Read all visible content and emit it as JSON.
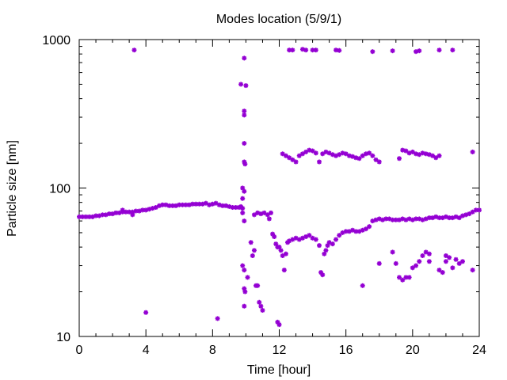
{
  "chart_data": {
    "type": "scatter",
    "title": "Modes location (5/9/1)",
    "xlabel": "Time [hour]",
    "ylabel": "Particle size [nm]",
    "xlim": [
      0,
      24
    ],
    "ylim": [
      10,
      1000
    ],
    "yscale": "log",
    "grid": false,
    "marker_color": "#9400d3",
    "xticks": [
      "0",
      "4",
      "8",
      "12",
      "16",
      "20",
      "24"
    ],
    "yticks": [
      "10",
      "100",
      "1000"
    ],
    "series": [
      {
        "values": [
          [
            0.0,
            64
          ],
          [
            0.2,
            64
          ],
          [
            0.4,
            64
          ],
          [
            0.6,
            64
          ],
          [
            0.8,
            64
          ],
          [
            1.0,
            65
          ],
          [
            1.2,
            65
          ],
          [
            1.4,
            66
          ],
          [
            1.6,
            66
          ],
          [
            1.8,
            67
          ],
          [
            2.0,
            67
          ],
          [
            2.2,
            68
          ],
          [
            2.4,
            68
          ],
          [
            2.6,
            69
          ],
          [
            2.8,
            69
          ],
          [
            3.0,
            69
          ],
          [
            3.2,
            69
          ],
          [
            3.4,
            70
          ],
          [
            3.6,
            70
          ],
          [
            3.8,
            71
          ],
          [
            4.0,
            71
          ],
          [
            4.2,
            72
          ],
          [
            4.4,
            73
          ],
          [
            4.6,
            74
          ],
          [
            4.8,
            76
          ],
          [
            5.0,
            77
          ],
          [
            5.2,
            77
          ],
          [
            5.4,
            76
          ],
          [
            5.6,
            76
          ],
          [
            5.8,
            76
          ],
          [
            6.0,
            77
          ],
          [
            6.2,
            77
          ],
          [
            6.4,
            77
          ],
          [
            6.6,
            77
          ],
          [
            6.8,
            78
          ],
          [
            7.0,
            78
          ],
          [
            7.2,
            78
          ],
          [
            7.4,
            78
          ],
          [
            7.6,
            79
          ],
          [
            7.8,
            77
          ],
          [
            8.0,
            78
          ],
          [
            8.2,
            79
          ],
          [
            8.4,
            77
          ],
          [
            8.6,
            76
          ],
          [
            8.8,
            76
          ],
          [
            9.0,
            75
          ],
          [
            9.2,
            74
          ],
          [
            9.4,
            74
          ],
          [
            9.6,
            74
          ],
          [
            9.8,
            73
          ],
          [
            2.6,
            71
          ],
          [
            3.2,
            66
          ],
          [
            9.7,
            500
          ],
          [
            9.9,
            750
          ],
          [
            10.0,
            490
          ],
          [
            9.9,
            330
          ],
          [
            9.9,
            310
          ],
          [
            9.9,
            200
          ],
          [
            9.9,
            150
          ],
          [
            9.95,
            145
          ],
          [
            9.8,
            100
          ],
          [
            9.9,
            95
          ],
          [
            9.8,
            85
          ],
          [
            9.7,
            75
          ],
          [
            9.8,
            68
          ],
          [
            9.9,
            60
          ],
          [
            9.8,
            30
          ],
          [
            9.9,
            28
          ],
          [
            9.9,
            21
          ],
          [
            9.95,
            20
          ],
          [
            9.9,
            16
          ],
          [
            10.1,
            25
          ],
          [
            10.3,
            43
          ],
          [
            10.4,
            35
          ],
          [
            10.5,
            38
          ],
          [
            10.6,
            22
          ],
          [
            10.7,
            22
          ],
          [
            10.8,
            17
          ],
          [
            10.9,
            16
          ],
          [
            11.0,
            15
          ],
          [
            10.5,
            66
          ],
          [
            10.7,
            68
          ],
          [
            10.9,
            67
          ],
          [
            11.1,
            68
          ],
          [
            11.3,
            66
          ],
          [
            11.4,
            62
          ],
          [
            11.5,
            68
          ],
          [
            11.6,
            49
          ],
          [
            11.7,
            47
          ],
          [
            11.8,
            42
          ],
          [
            11.9,
            40
          ],
          [
            12.0,
            40
          ],
          [
            12.1,
            38
          ],
          [
            12.2,
            35
          ],
          [
            12.3,
            28
          ],
          [
            12.5,
            43
          ],
          [
            12.4,
            36
          ],
          [
            11.9,
            12.5
          ],
          [
            12.0,
            12
          ],
          [
            12.6,
            44
          ],
          [
            12.8,
            45
          ],
          [
            13.0,
            46
          ],
          [
            13.2,
            45
          ],
          [
            13.4,
            46
          ],
          [
            13.6,
            47
          ],
          [
            13.8,
            48
          ],
          [
            14.0,
            46
          ],
          [
            14.2,
            45
          ],
          [
            14.4,
            41
          ],
          [
            14.5,
            27
          ],
          [
            14.6,
            26
          ],
          [
            14.7,
            36
          ],
          [
            14.8,
            38
          ],
          [
            14.9,
            41
          ],
          [
            15.0,
            43
          ],
          [
            15.2,
            42
          ],
          [
            15.4,
            45
          ],
          [
            15.6,
            48
          ],
          [
            15.8,
            50
          ],
          [
            16.0,
            51
          ],
          [
            16.2,
            51
          ],
          [
            16.4,
            52
          ],
          [
            16.6,
            51
          ],
          [
            16.8,
            51
          ],
          [
            17.0,
            52
          ],
          [
            17.2,
            53
          ],
          [
            17.4,
            55
          ],
          [
            17.6,
            60
          ],
          [
            17.8,
            61
          ],
          [
            18.0,
            62
          ],
          [
            18.2,
            61
          ],
          [
            18.4,
            62
          ],
          [
            18.6,
            62
          ],
          [
            18.8,
            61
          ],
          [
            19.0,
            61
          ],
          [
            19.2,
            61
          ],
          [
            19.4,
            62
          ],
          [
            19.6,
            61
          ],
          [
            19.8,
            62
          ],
          [
            20.0,
            61
          ],
          [
            20.2,
            62
          ],
          [
            20.4,
            62
          ],
          [
            20.6,
            61
          ],
          [
            20.8,
            62
          ],
          [
            21.0,
            63
          ],
          [
            21.2,
            63
          ],
          [
            21.4,
            64
          ],
          [
            21.6,
            63
          ],
          [
            21.8,
            63
          ],
          [
            22.0,
            64
          ],
          [
            22.2,
            63
          ],
          [
            22.4,
            63
          ],
          [
            22.6,
            64
          ],
          [
            22.8,
            63
          ],
          [
            23.0,
            65
          ],
          [
            23.2,
            66
          ],
          [
            23.4,
            67
          ],
          [
            23.6,
            69
          ],
          [
            23.8,
            71
          ],
          [
            24.0,
            71
          ],
          [
            12.2,
            170
          ],
          [
            12.4,
            165
          ],
          [
            12.6,
            160
          ],
          [
            12.8,
            155
          ],
          [
            13.0,
            150
          ],
          [
            13.2,
            165
          ],
          [
            13.4,
            170
          ],
          [
            13.6,
            175
          ],
          [
            13.8,
            180
          ],
          [
            14.0,
            178
          ],
          [
            14.2,
            172
          ],
          [
            14.4,
            150
          ],
          [
            14.6,
            170
          ],
          [
            14.8,
            175
          ],
          [
            15.0,
            172
          ],
          [
            15.2,
            168
          ],
          [
            15.4,
            165
          ],
          [
            15.6,
            168
          ],
          [
            15.8,
            172
          ],
          [
            16.0,
            170
          ],
          [
            16.2,
            165
          ],
          [
            16.4,
            163
          ],
          [
            16.6,
            160
          ],
          [
            16.8,
            158
          ],
          [
            17.0,
            165
          ],
          [
            17.2,
            170
          ],
          [
            17.4,
            172
          ],
          [
            17.6,
            165
          ],
          [
            17.8,
            155
          ],
          [
            18.0,
            150
          ],
          [
            19.2,
            158
          ],
          [
            19.4,
            180
          ],
          [
            19.6,
            178
          ],
          [
            19.8,
            172
          ],
          [
            20.0,
            175
          ],
          [
            20.2,
            170
          ],
          [
            20.4,
            168
          ],
          [
            20.6,
            172
          ],
          [
            20.8,
            170
          ],
          [
            21.0,
            168
          ],
          [
            21.2,
            165
          ],
          [
            21.4,
            160
          ],
          [
            21.6,
            165
          ],
          [
            23.6,
            175
          ],
          [
            3.3,
            850
          ],
          [
            12.6,
            850
          ],
          [
            12.8,
            850
          ],
          [
            13.4,
            860
          ],
          [
            13.6,
            850
          ],
          [
            14.0,
            850
          ],
          [
            14.2,
            850
          ],
          [
            15.4,
            850
          ],
          [
            15.6,
            845
          ],
          [
            17.6,
            830
          ],
          [
            18.8,
            840
          ],
          [
            20.2,
            830
          ],
          [
            20.4,
            840
          ],
          [
            21.6,
            850
          ],
          [
            22.4,
            850
          ],
          [
            4.0,
            14.5
          ],
          [
            8.3,
            13.2
          ],
          [
            18.0,
            31
          ],
          [
            18.8,
            37
          ],
          [
            19.0,
            31
          ],
          [
            19.2,
            25
          ],
          [
            19.4,
            24
          ],
          [
            19.6,
            25
          ],
          [
            19.8,
            25
          ],
          [
            20.0,
            29
          ],
          [
            20.2,
            30
          ],
          [
            20.4,
            32
          ],
          [
            20.6,
            35
          ],
          [
            20.8,
            37
          ],
          [
            21.0,
            36
          ],
          [
            21.6,
            28
          ],
          [
            21.8,
            27
          ],
          [
            22.0,
            32
          ],
          [
            22.2,
            34
          ],
          [
            22.4,
            29
          ],
          [
            22.6,
            33
          ],
          [
            22.8,
            31
          ],
          [
            23.0,
            32
          ],
          [
            23.6,
            28
          ],
          [
            17.0,
            22
          ],
          [
            21.0,
            32
          ],
          [
            22.0,
            35
          ]
        ]
      }
    ]
  }
}
